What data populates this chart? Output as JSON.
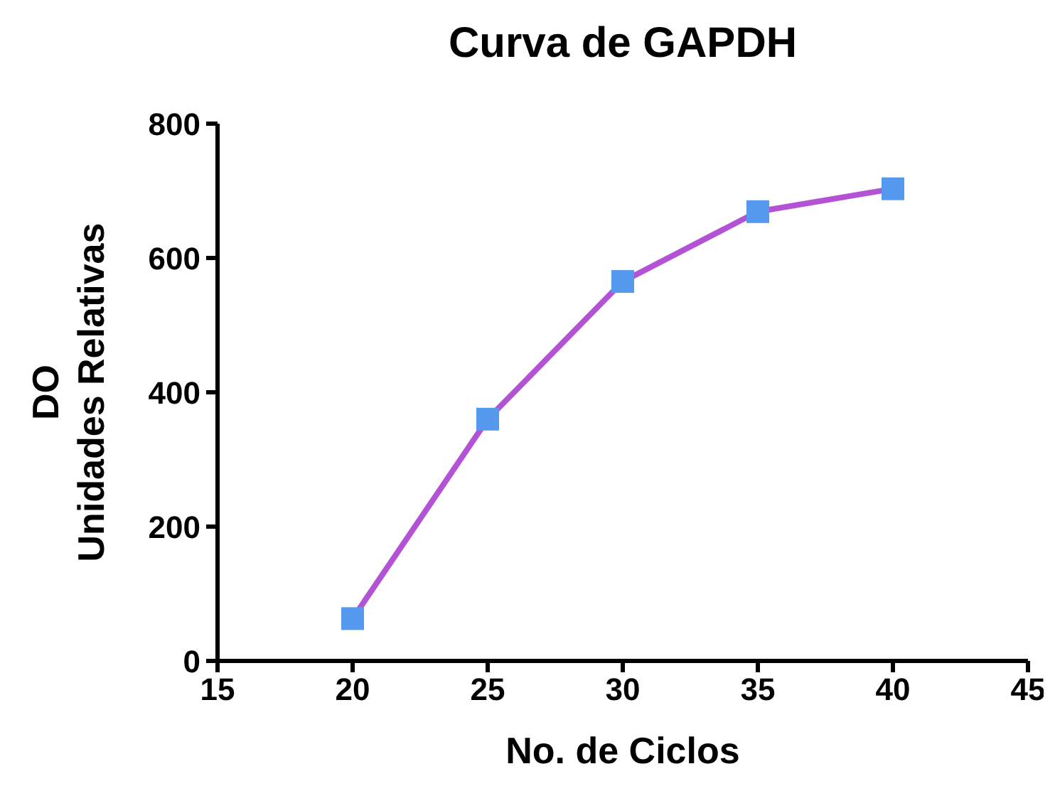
{
  "chart_data": {
    "type": "line",
    "title": "Curva de GAPDH",
    "xlabel": "No. de Ciclos",
    "ylabel": "DO\nUnidades Relativas",
    "x": [
      20,
      25,
      30,
      35,
      40
    ],
    "series": [
      {
        "color": "#b452d6",
        "colors": [
          "#5599ee",
          "#5599ee",
          "#5599ee",
          "#5599ee",
          "#5599ee"
        ],
        "values": [
          63,
          360,
          565,
          669,
          703
        ]
      }
    ],
    "xlim": [
      15,
      45
    ],
    "xticks": [
      15,
      20,
      25,
      30,
      35,
      40,
      45
    ],
    "ylim": [
      0,
      800
    ],
    "yticks": [
      0,
      200,
      400,
      600,
      800
    ],
    "grid": false,
    "legend": false,
    "marker": "square",
    "line_style": "solid"
  }
}
